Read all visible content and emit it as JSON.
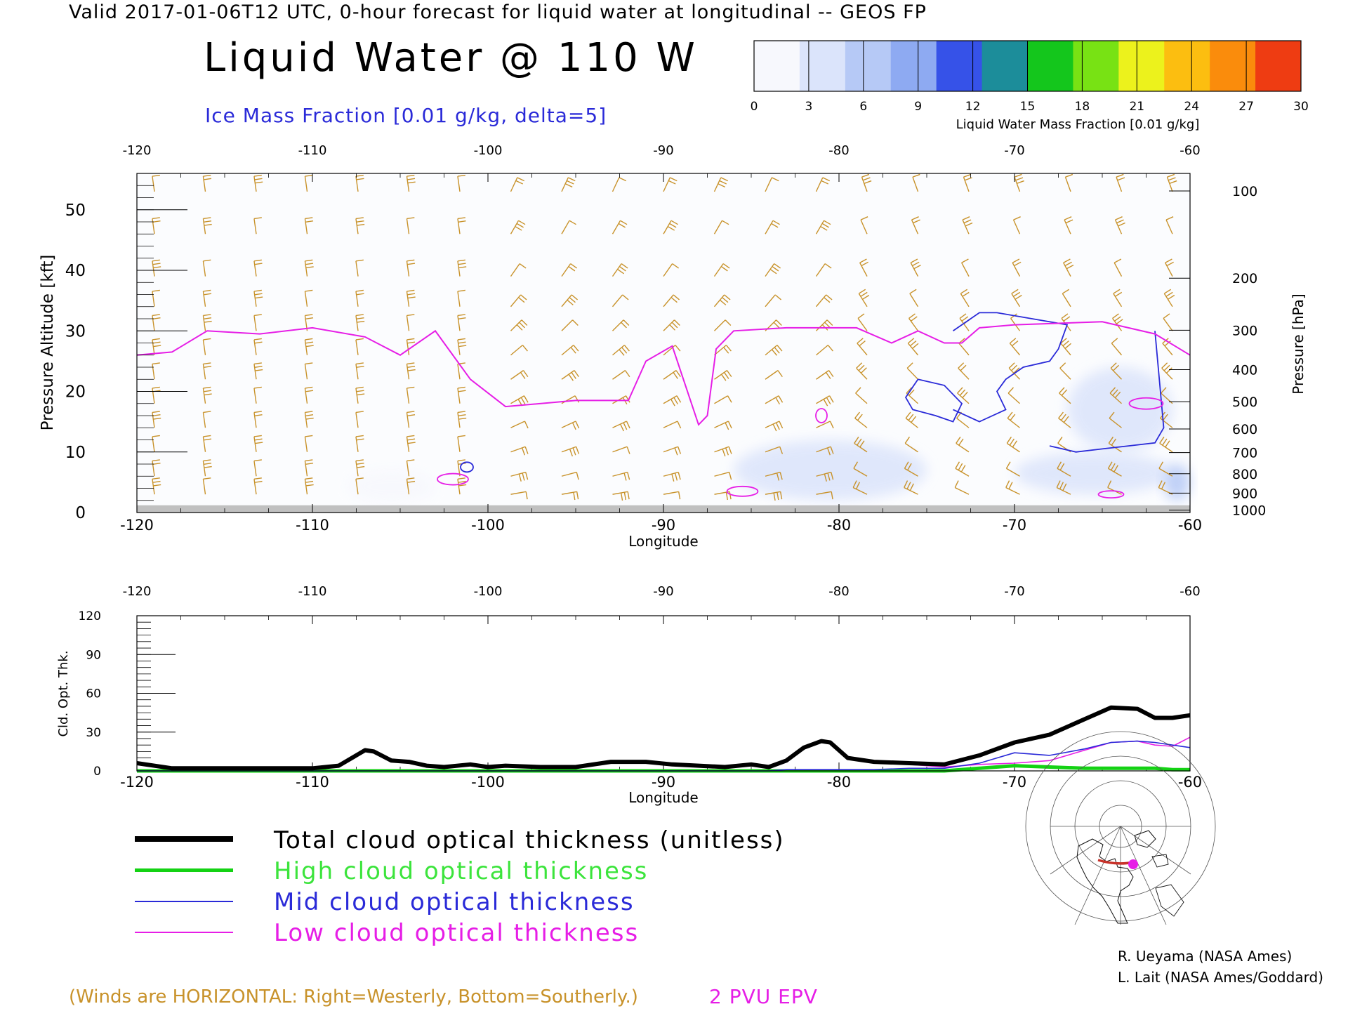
{
  "header": {
    "line": "Valid 2017-01-06T12 UTC, 0-hour forecast for liquid water at longitudinal -- GEOS FP",
    "title": "Liquid Water @ 110 W",
    "ice_label": "Ice Mass Fraction [0.01 g/kg, delta=5]"
  },
  "colorbar": {
    "ticks": [
      "0",
      "3",
      "6",
      "9",
      "12",
      "15",
      "18",
      "21",
      "24",
      "27",
      "30"
    ],
    "label": "Liquid Water Mass Fraction [0.01 g/kg]",
    "colors": [
      "#f7f8fd",
      "#dbe4fb",
      "#b6c9f6",
      "#8eaaf2",
      "#3652e8",
      "#1c8d9a",
      "#14c61c",
      "#78e214",
      "#ecf21c",
      "#fcbe10",
      "#fa8c0c",
      "#ee3c12"
    ]
  },
  "colors": {
    "wind_barbs": "#c8922a",
    "epv_contour": "#e61ee6",
    "ice_contour": "#2a2ad8",
    "ground": "#c0c0c0"
  },
  "chart_data": [
    {
      "type": "heatmap",
      "description_of_axes": "cross-section",
      "xlabel": "Longitude",
      "ylabel_left": "Pressure Altitude [kft]",
      "ylabel_right": "Pressure [hPa]",
      "xlim": [
        -120,
        -60
      ],
      "ylim": [
        0,
        56
      ],
      "x_ticks": [
        "-120",
        "-110",
        "-100",
        "-90",
        "-80",
        "-70",
        "-60"
      ],
      "top_ticks": [
        "-120",
        "-110",
        "-100",
        "-90",
        "-80",
        "-70",
        "-60"
      ],
      "y_ticks": [
        "0",
        "10",
        "20",
        "30",
        "40",
        "50"
      ],
      "pressure_ticks": [
        {
          "label": "100",
          "kft": 53.1
        },
        {
          "label": "200",
          "kft": 38.7
        },
        {
          "label": "300",
          "kft": 30.1
        },
        {
          "label": "400",
          "kft": 23.6
        },
        {
          "label": "500",
          "kft": 18.3
        },
        {
          "label": "600",
          "kft": 13.8
        },
        {
          "label": "700",
          "kft": 9.9
        },
        {
          "label": "800",
          "kft": 6.4
        },
        {
          "label": "900",
          "kft": 3.2
        },
        {
          "label": "1000",
          "kft": 0.4
        }
      ],
      "liquid_water_regions": [
        {
          "lon_from": -108,
          "lon_to": -103,
          "kft_from": 1.5,
          "kft_to": 7,
          "value": 2
        },
        {
          "lon_from": -86,
          "lon_to": -75,
          "kft_from": 2,
          "kft_to": 12,
          "value": 3
        },
        {
          "lon_from": -70,
          "lon_to": -61,
          "kft_from": 3,
          "kft_to": 10,
          "value": 4
        },
        {
          "lon_from": -67,
          "lon_to": -61,
          "kft_from": 10,
          "kft_to": 24,
          "value": 4
        },
        {
          "lon_from": -61.5,
          "lon_to": -60,
          "kft_from": 2,
          "kft_to": 8,
          "value": 7
        }
      ],
      "epv_2pvu_line": {
        "lon": [
          -120,
          -118,
          -116,
          -113,
          -110,
          -107,
          -105,
          -103,
          -101,
          -99,
          -95,
          -92,
          -91,
          -89.5,
          -88,
          -87.5,
          -87,
          -86,
          -83,
          -79,
          -77,
          -75.5,
          -74,
          -73,
          -72,
          -70,
          -65,
          -62,
          -60
        ],
        "kft": [
          26,
          26.5,
          30,
          29.5,
          30.5,
          29,
          26,
          30,
          22,
          17.5,
          18.5,
          18.5,
          25,
          27.5,
          14.5,
          16,
          27,
          30,
          30.5,
          30.5,
          28,
          30,
          28,
          28,
          30.5,
          31,
          31.5,
          29.5,
          26
        ]
      },
      "ice_contours": [
        {
          "lon": [
            -73.5,
            -72,
            -71,
            -69,
            -67,
            -67.5,
            -68,
            -69.5,
            -70.5,
            -71,
            -70.5,
            -72,
            -73.5
          ],
          "kft": [
            30,
            33,
            33,
            32,
            31,
            27,
            25,
            24,
            22,
            20,
            17,
            15,
            17
          ]
        },
        {
          "lon": [
            -75.5,
            -74,
            -73,
            -73.5,
            -74.5,
            -75.8,
            -76.2,
            -75.5
          ],
          "kft": [
            22,
            21,
            18,
            15,
            16,
            17,
            19,
            22
          ]
        },
        {
          "lon": [
            -68,
            -66.5,
            -65,
            -63.5,
            -62,
            -61.5,
            -62
          ],
          "kft": [
            11,
            10,
            10.5,
            11,
            11.5,
            14,
            30
          ]
        }
      ],
      "ground_kft": 1.2
    },
    {
      "type": "line",
      "xlabel": "Longitude",
      "ylabel": "Cld. Opt. Thk.",
      "xlim": [
        -120,
        -60
      ],
      "ylim": [
        0,
        120
      ],
      "x_ticks": [
        "-120",
        "-110",
        "-100",
        "-90",
        "-80",
        "-70",
        "-60"
      ],
      "top_ticks": [
        "-120",
        "-110",
        "-100",
        "-90",
        "-80",
        "-70",
        "-60"
      ],
      "y_ticks": [
        "0",
        "30",
        "60",
        "90",
        "120"
      ],
      "x": [
        -120,
        -118,
        -116,
        -114,
        -112,
        -110,
        -108.5,
        -107,
        -106.5,
        -105.5,
        -104.5,
        -103.5,
        -102.5,
        -101,
        -100,
        -99,
        -97,
        -95,
        -93,
        -91,
        -89.5,
        -88,
        -86.5,
        -85,
        -84,
        -83,
        -82,
        -81,
        -80.5,
        -79.5,
        -78,
        -76,
        -74,
        -72,
        -70,
        -68,
        -66,
        -64.5,
        -63,
        -62,
        -61,
        -60
      ],
      "series": [
        {
          "name": "Total cloud optical thickness (unitless)",
          "color": "#000000",
          "values": [
            6,
            2,
            2,
            2,
            2,
            2,
            4,
            16,
            15,
            8,
            7,
            4,
            3,
            5,
            3,
            4,
            3,
            3,
            7,
            7,
            5,
            4,
            3,
            5,
            3,
            8,
            18,
            23,
            22,
            10,
            7,
            6,
            5,
            12,
            22,
            28,
            40,
            49,
            48,
            41,
            41,
            43
          ]
        },
        {
          "name": "High cloud optical thickness",
          "color": "#14d214",
          "values": [
            0,
            0,
            0,
            0,
            0,
            0,
            0,
            0,
            0,
            0,
            0,
            0,
            0,
            0,
            0,
            0,
            0,
            0,
            0,
            0,
            0,
            0,
            0,
            0,
            0,
            0,
            0,
            0,
            0,
            0,
            0,
            0,
            0,
            2,
            4,
            3,
            2,
            2,
            2,
            2,
            1,
            1
          ]
        },
        {
          "name": "Mid cloud optical thickness",
          "color": "#2a2ad8",
          "values": [
            0,
            0,
            0,
            0,
            0,
            0,
            0,
            0,
            0,
            0,
            0,
            0,
            0,
            0,
            0,
            0,
            0,
            0,
            0,
            0,
            0,
            0,
            0,
            0,
            0,
            1,
            1,
            1,
            1,
            1,
            1,
            2,
            2,
            6,
            14,
            12,
            17,
            22,
            23,
            22,
            20,
            18
          ]
        },
        {
          "name": "Low cloud optical thickness",
          "color": "#e61ee6",
          "values": [
            5,
            2,
            2,
            2,
            2,
            2,
            4,
            15,
            14,
            8,
            7,
            4,
            3,
            5,
            3,
            4,
            3,
            3,
            6,
            6,
            5,
            4,
            3,
            4,
            3,
            7,
            17,
            22,
            21,
            9,
            6,
            5,
            3,
            5,
            6,
            8,
            16,
            22,
            23,
            20,
            19,
            26
          ]
        }
      ]
    }
  ],
  "legend": [
    {
      "label": "Total cloud optical thickness (unitless)",
      "color": "#000000"
    },
    {
      "label": "High cloud optical thickness",
      "color": "#14d214"
    },
    {
      "label": "Mid cloud optical thickness",
      "color": "#2a2ad8"
    },
    {
      "label": "Low cloud optical thickness",
      "color": "#e61ee6"
    }
  ],
  "footer": {
    "winds_note": "(Winds are HORIZONTAL: Right=Westerly, Bottom=Southerly.)",
    "epv_label": "2 PVU EPV",
    "credit_1": "R. Ueyama (NASA Ames)",
    "credit_2": "L. Lait (NASA Ames/Goddard)"
  },
  "inset_map": {
    "marker_color": "#e61ee6",
    "track_color": "#c8322a"
  }
}
